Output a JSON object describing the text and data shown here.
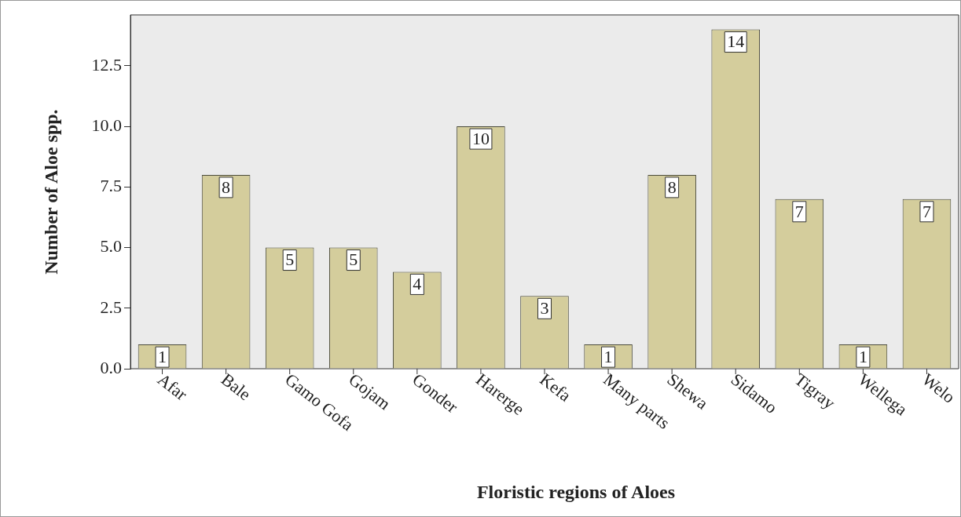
{
  "chart_data": {
    "type": "bar",
    "xlabel": "Floristic regions of Aloes",
    "ylabel": "Number of Aloe spp.",
    "categories": [
      "Afar",
      "Bale",
      "Gamo Gofa",
      "Gojam",
      "Gonder",
      "Harerge",
      "Kefa",
      "Many parts",
      "Shewa",
      "Sidamo",
      "Tigray",
      "Wellega",
      "Welo"
    ],
    "values": [
      1,
      8,
      5,
      5,
      4,
      10,
      3,
      1,
      8,
      14,
      7,
      1,
      7
    ],
    "color": "#d4cd9c",
    "ylim": [
      0,
      14.6
    ],
    "yticks": [
      {
        "value": 0,
        "label": "0.0"
      },
      {
        "value": 2.5,
        "label": "2.5"
      },
      {
        "value": 5,
        "label": "5.0"
      },
      {
        "value": 7.5,
        "label": "7.5"
      },
      {
        "value": 10,
        "label": "10.0"
      },
      {
        "value": 12.5,
        "label": "12.5"
      }
    ],
    "data_labels": true,
    "grid": false,
    "legend": false
  }
}
